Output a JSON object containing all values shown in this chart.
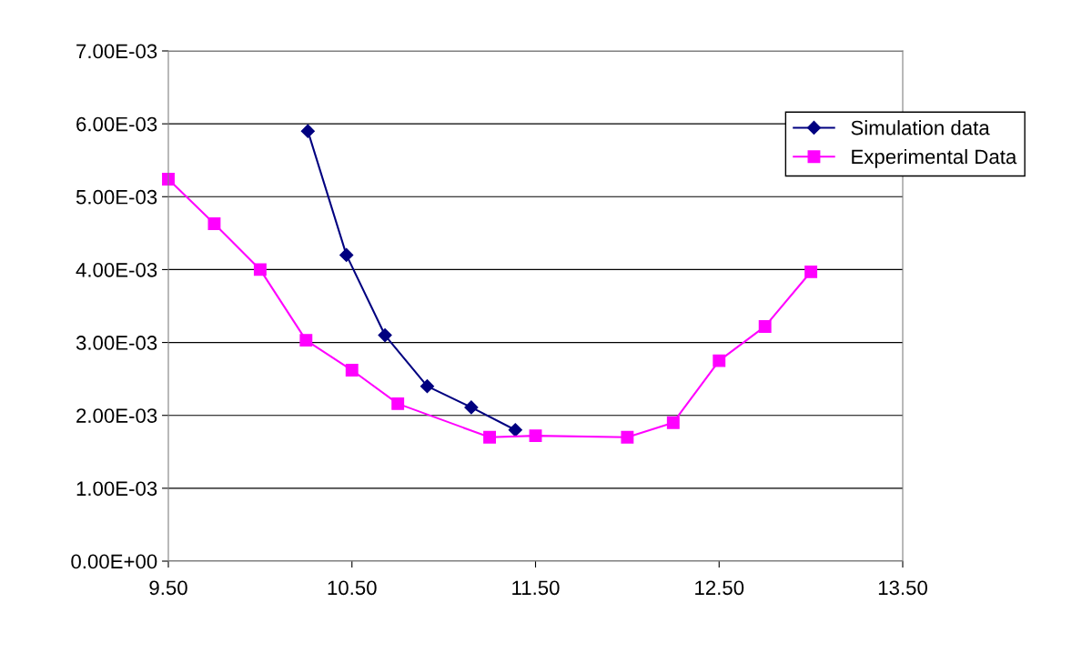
{
  "chart_data": {
    "type": "line",
    "series": [
      {
        "name": "Simulation data",
        "color": "#000080",
        "marker": "diamond",
        "x": [
          10.26,
          10.47,
          10.68,
          10.91,
          11.15,
          11.39
        ],
        "values": [
          0.0059,
          0.0042,
          0.0031,
          0.0024,
          0.00211,
          0.0018
        ]
      },
      {
        "name": "Experimental Data",
        "color": "#ff00ff",
        "marker": "square",
        "x": [
          9.5,
          9.75,
          10.0,
          10.25,
          10.5,
          10.75,
          11.25,
          11.5,
          12.0,
          12.25,
          12.5,
          12.75,
          13.0
        ],
        "values": [
          0.00524,
          0.00463,
          0.004,
          0.00303,
          0.00262,
          0.00216,
          0.0017,
          0.00172,
          0.0017,
          0.0019,
          0.00275,
          0.00322,
          0.00397
        ]
      }
    ],
    "xlim": [
      9.5,
      13.5
    ],
    "xticks": [
      {
        "value": 9.5,
        "label": "9.50"
      },
      {
        "value": 10.5,
        "label": "10.50"
      },
      {
        "value": 11.5,
        "label": "11.50"
      },
      {
        "value": 12.5,
        "label": "12.50"
      },
      {
        "value": 13.5,
        "label": "13.50"
      }
    ],
    "ylim": [
      0,
      0.007
    ],
    "yticks": [
      {
        "value": 0,
        "label": "0.00E+00"
      },
      {
        "value": 0.001,
        "label": "1.00E-03"
      },
      {
        "value": 0.002,
        "label": "2.00E-03"
      },
      {
        "value": 0.003,
        "label": "3.00E-03"
      },
      {
        "value": 0.004,
        "label": "4.00E-03"
      },
      {
        "value": 0.005,
        "label": "5.00E-03"
      },
      {
        "value": 0.006,
        "label": "6.00E-03"
      },
      {
        "value": 0.007,
        "label": "7.00E-03"
      }
    ],
    "grid": "y",
    "legend": "top right",
    "line_style": "solid"
  }
}
